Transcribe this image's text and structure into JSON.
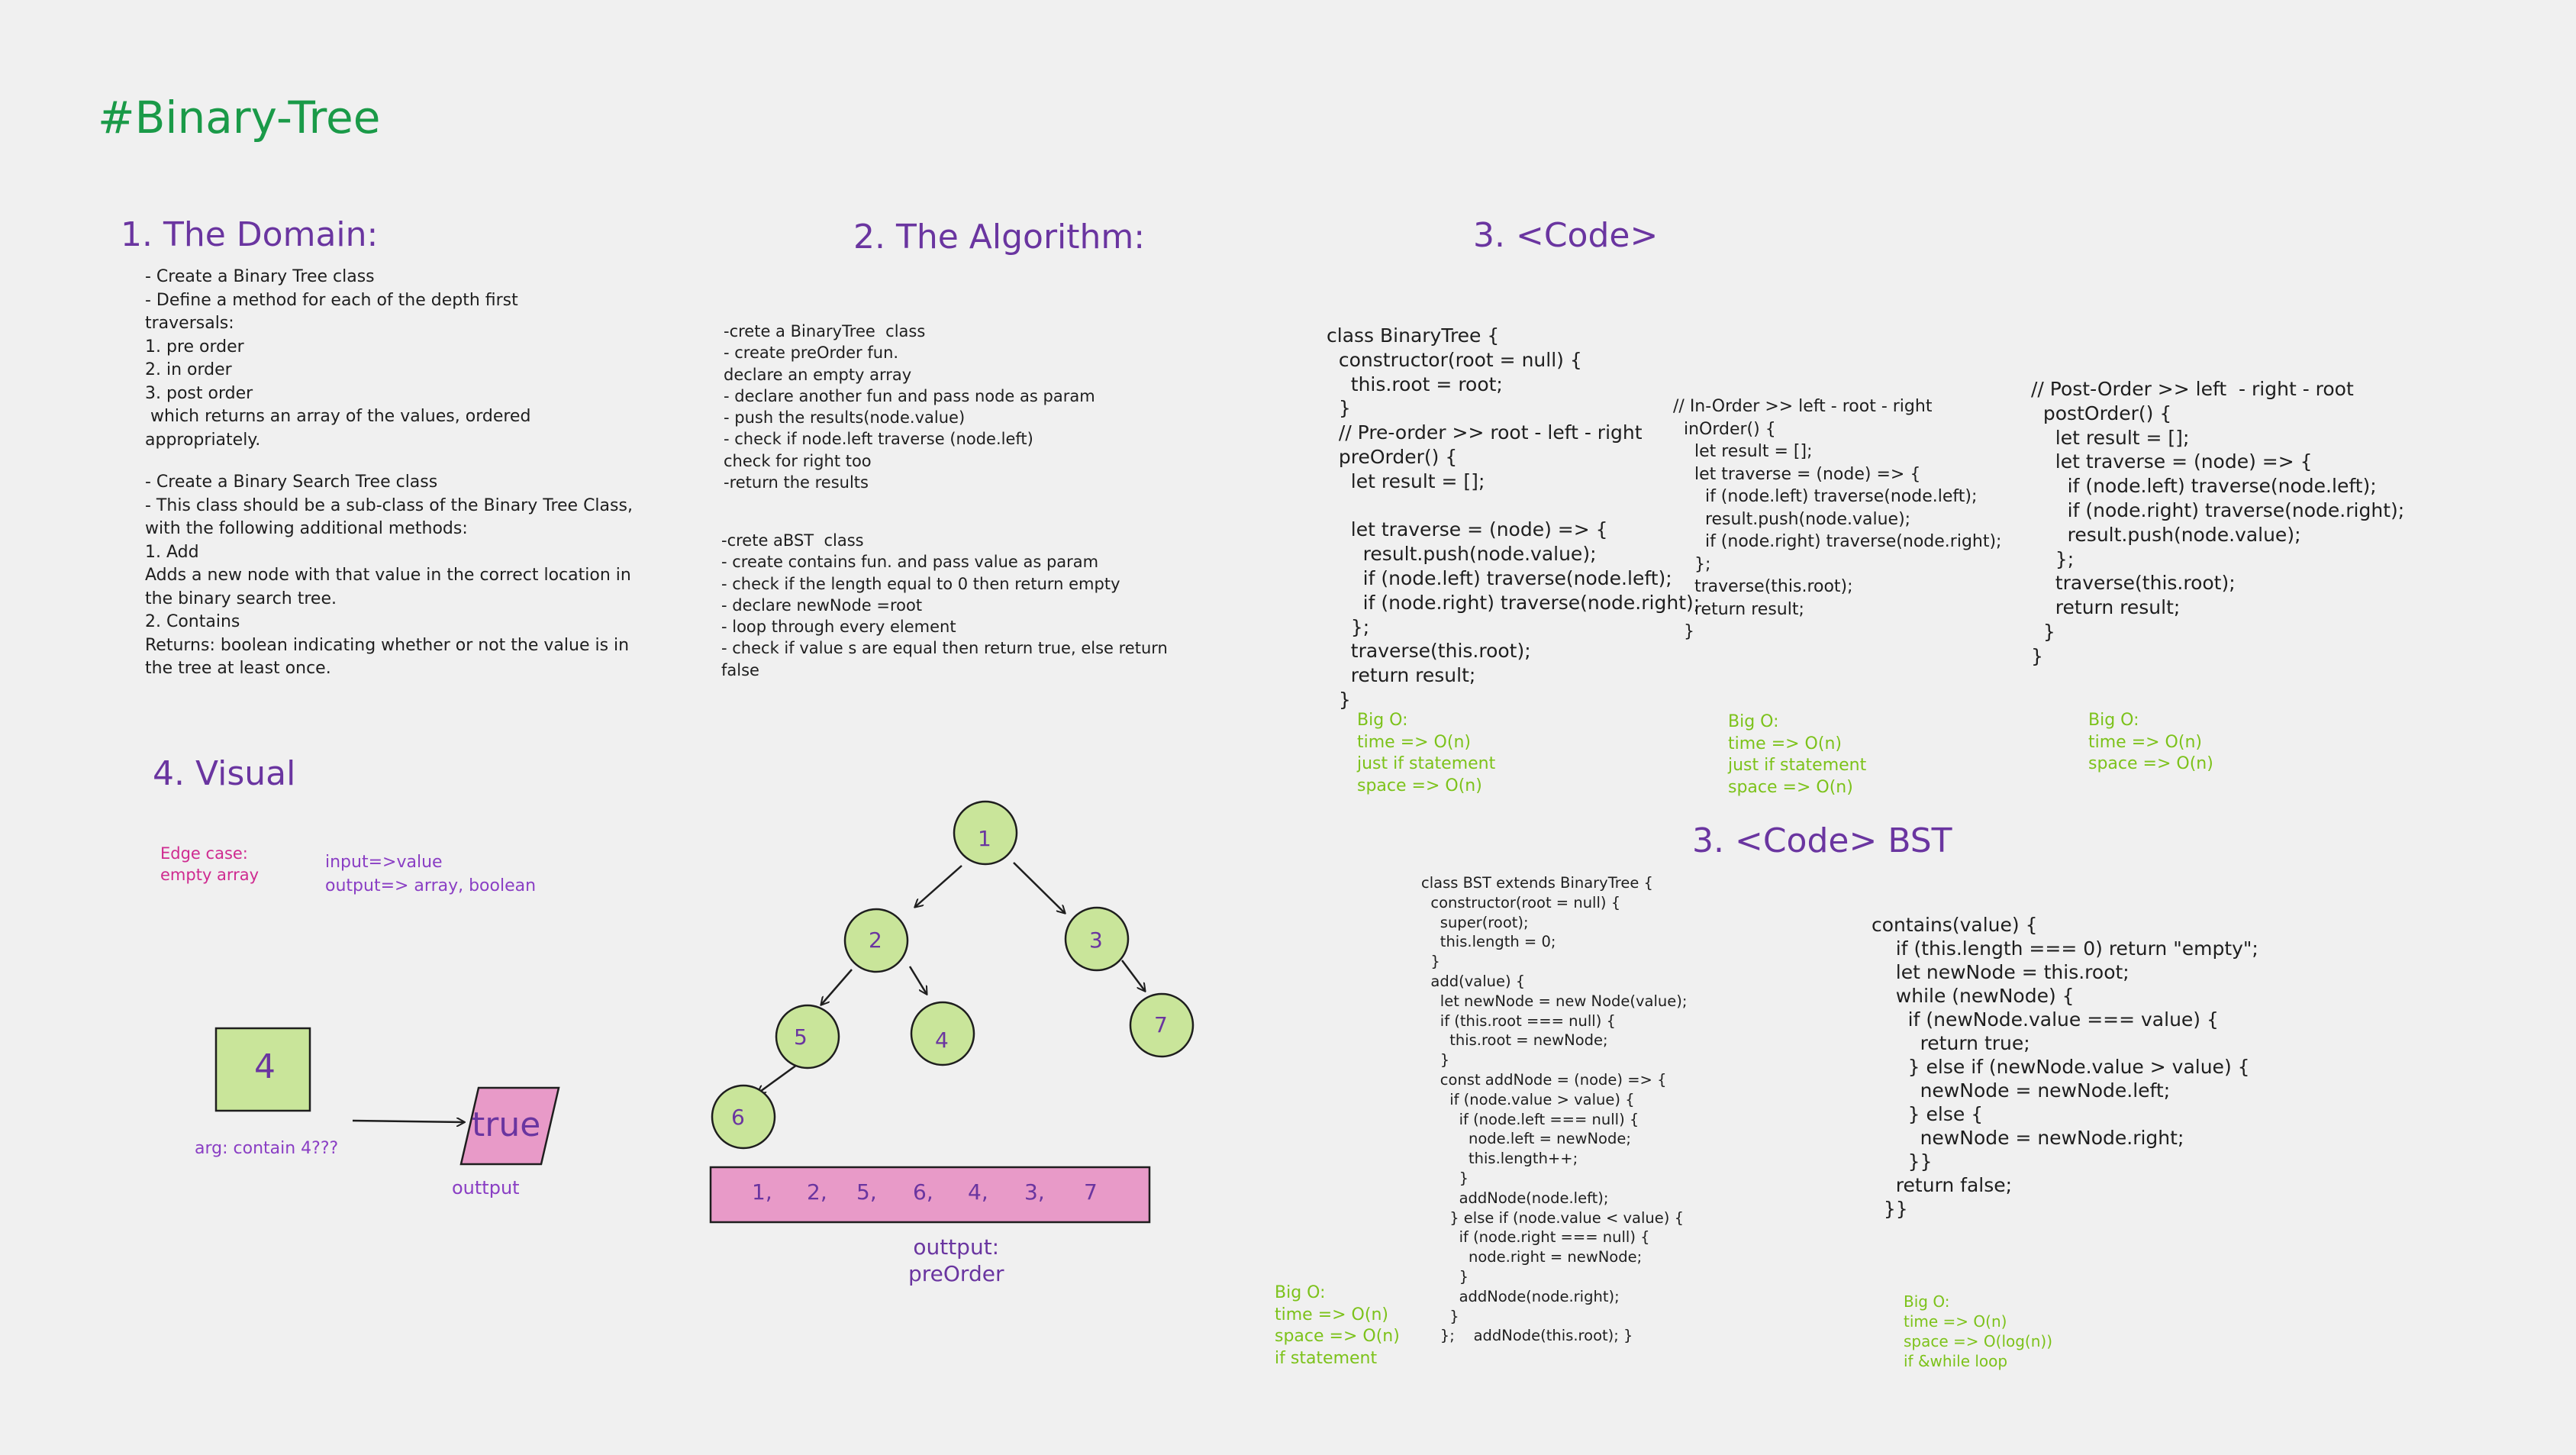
{
  "title": "#Binary-Tree",
  "headings": {
    "domain": "1. The Domain:",
    "algorithm": "2. The Algorithm:",
    "code": "3. <Code>",
    "code_bst": "3. <Code> BST",
    "visual": "4. Visual"
  },
  "domain": {
    "part1": "- Create a Binary Tree class\n- Define a method for each of the depth first\ntraversals:\n1. pre order\n2. in order\n3. post order\n which returns an array of the values, ordered\nappropriately.",
    "part2": "- Create a Binary Search Tree class\n- This class should be a sub-class of the Binary Tree Class,\nwith the following additional methods:\n1. Add\nAdds a new node with that value in the correct location in\nthe binary search tree.\n2. Contains\nReturns: boolean indicating whether or not the value is in\nthe tree at least once."
  },
  "algorithm": {
    "part1": "-crete a BinaryTree  class\n- create preOrder fun.\ndeclare an empty array\n- declare another fun and pass node as param\n- push the results(node.value)\n- check if node.left traverse (node.left)\ncheck for right too\n-return the results",
    "part2": "-crete aBST  class\n- create contains fun. and pass value as param\n- check if the length equal to 0 then return empty\n- declare newNode =root\n- loop through every element\n- check if value s are equal then return true, else return\nfalse"
  },
  "code": {
    "preorder": "class BinaryTree {\n  constructor(root = null) {\n    this.root = root;\n  }\n  // Pre-order >> root - left - right\n  preOrder() {\n    let result = [];\n\n    let traverse = (node) => {\n      result.push(node.value);\n      if (node.left) traverse(node.left);\n      if (node.right) traverse(node.right);\n    };\n    traverse(this.root);\n    return result;\n  }",
    "inorder": "// In-Order >> left - root - right\n  inOrder() {\n    let result = [];\n    let traverse = (node) => {\n      if (node.left) traverse(node.left);\n      result.push(node.value);\n      if (node.right) traverse(node.right);\n    };\n    traverse(this.root);\n    return result;\n  }",
    "postorder": "// Post-Order >> left  - right - root\n  postOrder() {\n    let result = [];\n    let traverse = (node) => {\n      if (node.left) traverse(node.left);\n      if (node.right) traverse(node.right);\n      result.push(node.value);\n    };\n    traverse(this.root);\n    return result;\n  }\n}",
    "bst_add": "class BST extends BinaryTree {\n  constructor(root = null) {\n    super(root);\n    this.length = 0;\n  }\n  add(value) {\n    let newNode = new Node(value);\n    if (this.root === null) {\n      this.root = newNode;\n    }\n    const addNode = (node) => {\n      if (node.value > value) {\n        if (node.left === null) {\n          node.left = newNode;\n          this.length++;\n        }\n        addNode(node.left);\n      } else if (node.value < value) {\n        if (node.right === null) {\n          node.right = newNode;\n        }\n        addNode(node.right);\n      }\n    };    addNode(this.root); }",
    "bst_contains": "contains(value) {\n    if (this.length === 0) return \"empty\";\n    let newNode = this.root;\n    while (newNode) {\n      if (newNode.value === value) {\n        return true;\n      } else if (newNode.value > value) {\n        newNode = newNode.left;\n      } else {\n        newNode = newNode.right;\n      }}\n    return false;\n  }}"
  },
  "big_o": {
    "preorder": "Big O:\ntime => O(n)\njust if statement\nspace => O(n)",
    "inorder": "Big O:\ntime => O(n)\njust if statement\nspace => O(n)",
    "postorder": "Big O:\ntime => O(n)\nspace => O(n)",
    "bst_add": "Big O:\ntime => O(n)\nspace => O(n)\nif statement",
    "bst_contains": "Big O:\ntime => O(n)\nspace => O(log(n))\nif &while loop"
  },
  "visual": {
    "edge_case": "Edge case:\nempty array",
    "io": "input=>value\noutput=> array, boolean",
    "input_value": "4",
    "arg_label": "arg: contain 4???",
    "output_value": "true",
    "output_label": "outtput",
    "tree_nodes": [
      "1",
      "2",
      "3",
      "5",
      "4",
      "7",
      "6"
    ],
    "preorder_result": [
      "1,",
      "2,",
      "5,",
      "6,",
      "4,",
      "3,",
      "7"
    ],
    "preorder_label": "outtput:\npreOrder"
  },
  "colors": {
    "title": "#1a9a48",
    "heading": "#6a35a0",
    "big_o": "#7cc21a",
    "node_fill": "#c9e59a",
    "output_fill": "#e89ac8",
    "edge_case": "#cf2a90"
  }
}
